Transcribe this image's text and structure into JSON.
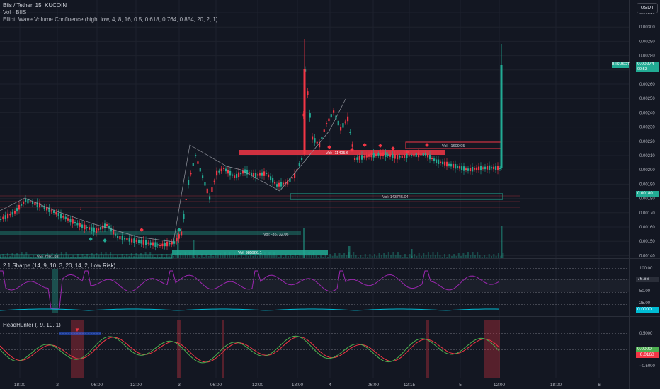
{
  "header": {
    "symbol_line": "Biis / Tether, 15, KUCOIN",
    "volume_line": "Vol · BIIS",
    "indicator_line": "Elliott Wave Volume Confluence (high, low, 4, 8, 16, 0.5, 0.618, 0.764, 0.854, 20, 2, 1)"
  },
  "currency_button": "USDT",
  "price_axis": {
    "ticks": [
      "0.00310",
      "0.00300",
      "0.00290",
      "0.00280",
      "0.00270",
      "0.00260",
      "0.00250",
      "0.00240",
      "0.00230",
      "0.00220",
      "0.00210",
      "0.00200",
      "0.00190",
      "0.00180",
      "0.00170",
      "0.00160",
      "0.00150",
      "0.00140"
    ],
    "last_price_symbol": "BIISUSDT",
    "last_price": "0.00274",
    "countdown": "09:53",
    "marker_value": "0.00180"
  },
  "zones": [
    {
      "label": "Vol: -1609.95",
      "color": "#f23645"
    },
    {
      "label": "Vol: -11405.6",
      "color": "#f23645"
    },
    {
      "label": "Vol: 143745.04",
      "color": "#22ab94"
    },
    {
      "label": "Vol: -35732.06",
      "color": "#22ab94"
    },
    {
      "label": "Vol: 985986.1",
      "color": "#22ab94"
    },
    {
      "label": "Vol: 7291.98",
      "color": "#22ab94"
    }
  ],
  "sharpe_pane": {
    "title": "2.1 Sharpe (14, 9, 10, 3, 20, 14, 2, Low Risk)",
    "ticks": [
      "100.00",
      "50.00",
      "25.00"
    ],
    "value_badge": "76.66",
    "zero_badge": "0.0000",
    "line_color": "#9c27b0"
  },
  "headhunter_pane": {
    "title": "HeadHunter (, 9, 10, 1)",
    "ticks": [
      "0.5000",
      "−0.5000"
    ],
    "value_badge_green": "0.0000",
    "value_badge_red": "−0.0160"
  },
  "time_axis": {
    "labels": [
      "18:00",
      "2",
      "06:00",
      "12:00",
      "3",
      "06:00",
      "12:00",
      "18:00",
      "4",
      "06:00",
      "12:15",
      "5",
      "12:00",
      "18:00",
      "6"
    ]
  }
}
